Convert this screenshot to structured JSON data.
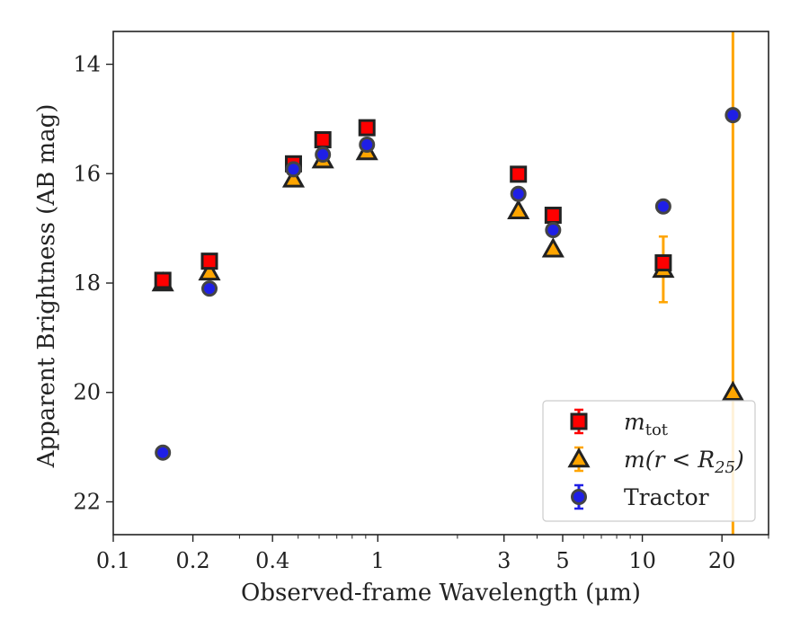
{
  "chart_data": {
    "type": "scatter",
    "title": "",
    "xlabel": "Observed-frame Wavelength (μm)",
    "ylabel": "Apparent Brightness (AB mag)",
    "xscale": "log",
    "xlim": [
      0.1,
      30
    ],
    "ylim": [
      22.6,
      13.4
    ],
    "y_inverted": true,
    "grid": false,
    "legend_position": "lower-right",
    "x_ticks": [
      0.1,
      0.2,
      0.4,
      1,
      3,
      5,
      10,
      20
    ],
    "x_tick_labels": [
      "0.1",
      "0.2",
      "0.4",
      "1",
      "3",
      "5",
      "10",
      "20"
    ],
    "y_ticks": [
      14,
      16,
      18,
      20,
      22
    ],
    "y_tick_labels": [
      "14",
      "16",
      "18",
      "20",
      "22"
    ],
    "colors": {
      "m_tot": "#ff0000",
      "m_r25": "#ffa500",
      "tractor": "#1f1fe6",
      "edge": "#222222"
    },
    "series": [
      {
        "name": "m_tot",
        "marker": "square",
        "color": "#ff0000",
        "errorbar_color": "#ff0000",
        "points": [
          {
            "x": 0.154,
            "y": 17.95,
            "yerr": 0.05
          },
          {
            "x": 0.231,
            "y": 17.6,
            "yerr": 0.05
          },
          {
            "x": 0.48,
            "y": 15.82,
            "yerr": 0.03
          },
          {
            "x": 0.62,
            "y": 15.38,
            "yerr": 0.03
          },
          {
            "x": 0.91,
            "y": 15.16,
            "yerr": 0.03
          },
          {
            "x": 3.4,
            "y": 16.01,
            "yerr": 0.03
          },
          {
            "x": 4.6,
            "y": 16.76,
            "yerr": 0.03
          },
          {
            "x": 12.0,
            "y": 17.63,
            "yerr": 0.08
          }
        ]
      },
      {
        "name": "m_r25",
        "marker": "triangle",
        "color": "#ffa500",
        "errorbar_color": "#ffa500",
        "points": [
          {
            "x": 0.154,
            "y": 18.0,
            "yerr": 0.05
          },
          {
            "x": 0.231,
            "y": 17.8,
            "yerr": 0.05
          },
          {
            "x": 0.48,
            "y": 16.1,
            "yerr": 0.03
          },
          {
            "x": 0.62,
            "y": 15.75,
            "yerr": 0.03
          },
          {
            "x": 0.91,
            "y": 15.6,
            "yerr": 0.03
          },
          {
            "x": 3.4,
            "y": 16.68,
            "yerr": 0.03
          },
          {
            "x": 4.6,
            "y": 17.38,
            "yerr": 0.03
          },
          {
            "x": 12.0,
            "y": 17.75,
            "yerr": 0.6
          },
          {
            "x": 22.0,
            "y": 20.0,
            "yerr": 60
          }
        ]
      },
      {
        "name": "Tractor",
        "marker": "circle",
        "color": "#1f1fe6",
        "errorbar_color": "#1f1fe6",
        "points": [
          {
            "x": 0.154,
            "y": 21.1,
            "yerr": 0.05
          },
          {
            "x": 0.231,
            "y": 18.1,
            "yerr": 0.05
          },
          {
            "x": 0.48,
            "y": 15.92,
            "yerr": 0.03
          },
          {
            "x": 0.62,
            "y": 15.65,
            "yerr": 0.03
          },
          {
            "x": 0.91,
            "y": 15.47,
            "yerr": 0.03
          },
          {
            "x": 3.4,
            "y": 16.37,
            "yerr": 0.03
          },
          {
            "x": 4.6,
            "y": 17.03,
            "yerr": 0.03
          },
          {
            "x": 12.0,
            "y": 16.6,
            "yerr": 0.03
          },
          {
            "x": 22.0,
            "y": 14.93,
            "yerr": 0.05
          }
        ]
      }
    ],
    "legend": [
      {
        "series": "m_tot",
        "label_main": "m",
        "label_sub": "tot",
        "label_tail": ""
      },
      {
        "series": "m_r25",
        "label_main": "m(r < R",
        "label_sub": "25",
        "label_tail": ")"
      },
      {
        "series": "Tractor",
        "label_main": "Tractor",
        "label_sub": "",
        "label_tail": ""
      }
    ]
  }
}
